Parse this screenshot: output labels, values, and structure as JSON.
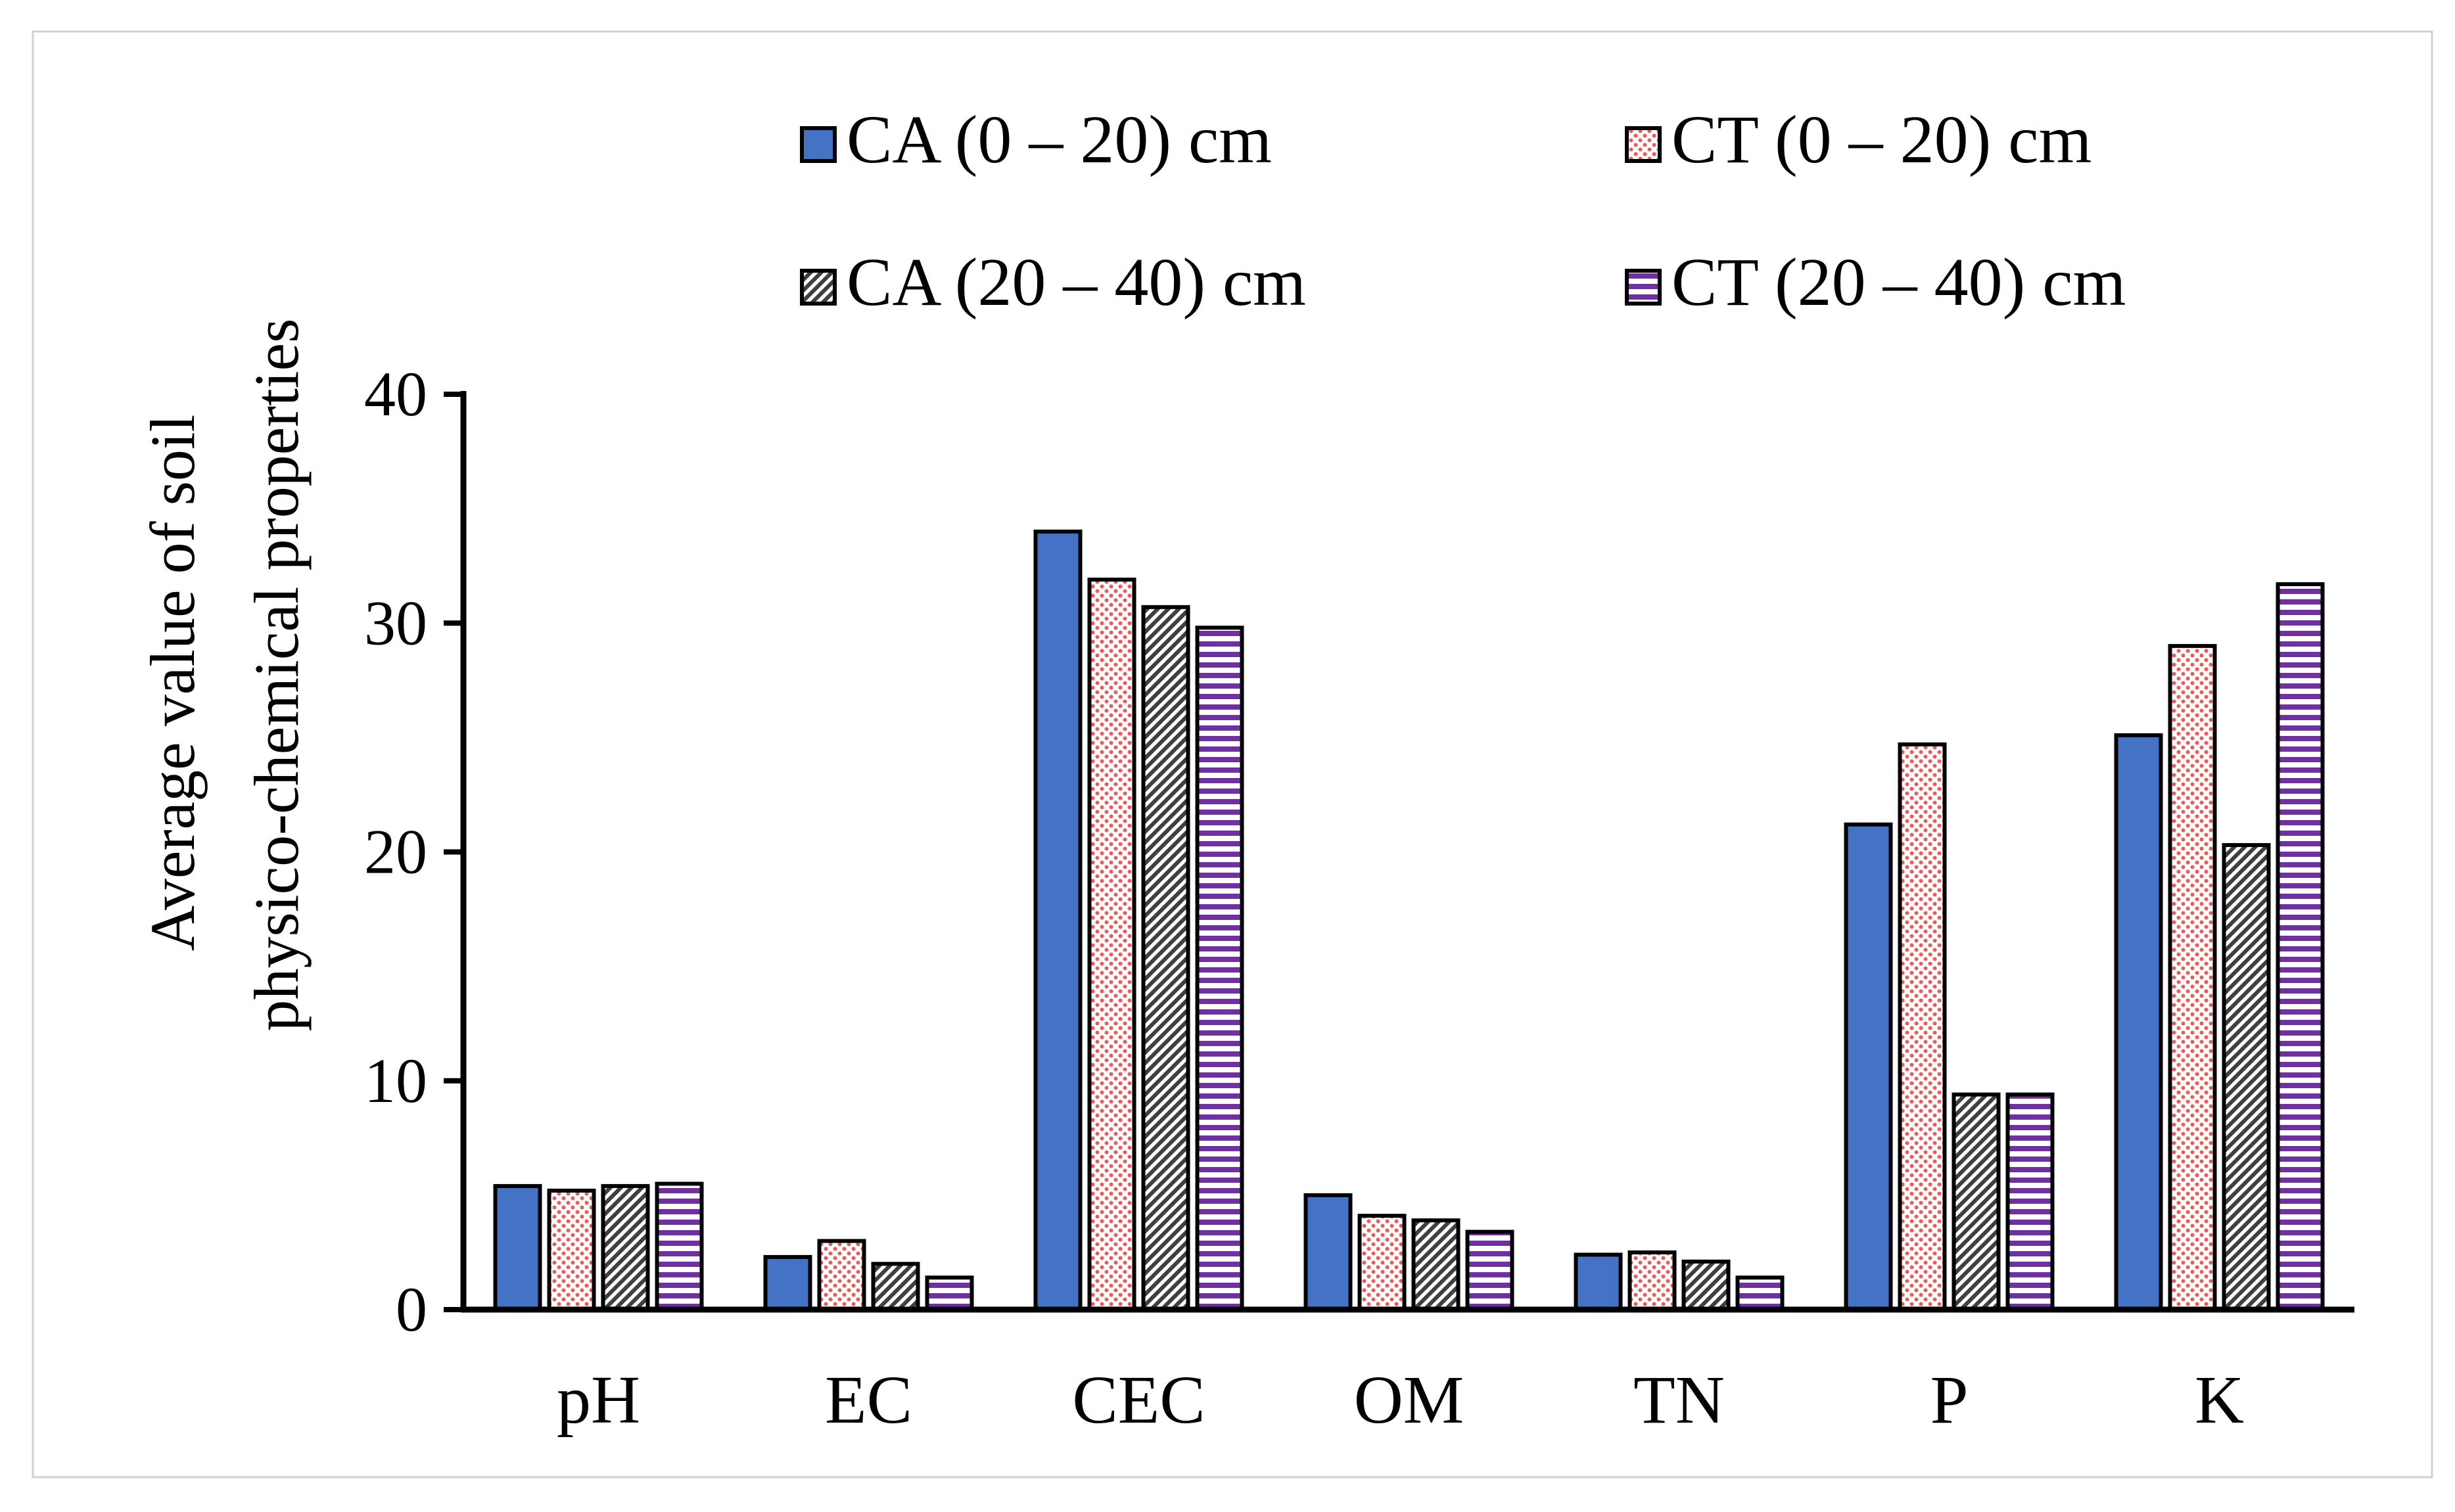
{
  "chart_data": {
    "type": "bar",
    "title": "",
    "xlabel": "",
    "ylabel": [
      "Average value of soil",
      "physico-chemical properties"
    ],
    "categories": [
      "pH",
      "EC",
      "CEC",
      "OM",
      "TN",
      "P",
      "K"
    ],
    "ylim": [
      0,
      40
    ],
    "yticks": [
      0,
      10,
      20,
      30,
      40
    ],
    "grid": false,
    "legend_position": "top",
    "series": [
      {
        "name": "CA (0 – 20) cm",
        "pattern": "solid",
        "color": "#4472C4",
        "values": [
          5.4,
          2.3,
          34.0,
          5.0,
          2.4,
          21.2,
          25.1
        ]
      },
      {
        "name": "CT (0 – 20) cm",
        "pattern": "dots",
        "color": "#F4A6A6",
        "values": [
          5.2,
          3.0,
          31.9,
          4.1,
          2.5,
          24.7,
          29.0
        ]
      },
      {
        "name": "CA (20 – 40) cm",
        "pattern": "diagonal",
        "color": "#404040",
        "values": [
          5.4,
          2.0,
          30.7,
          3.9,
          2.1,
          9.4,
          20.3
        ]
      },
      {
        "name": "CT (20 – 40) cm",
        "pattern": "horizontal",
        "color": "#7030A0",
        "values": [
          5.5,
          1.4,
          29.8,
          3.4,
          1.4,
          9.4,
          31.7
        ]
      }
    ]
  }
}
